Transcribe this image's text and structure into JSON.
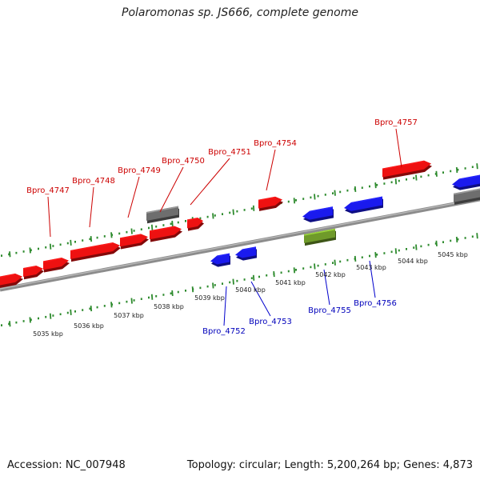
{
  "title": "Polaromonas sp. JS666, complete genome",
  "footer": {
    "accession": "Accession: NC_007948",
    "summary": "Topology: circular; Length: 5,200,264 bp; Genes: 4,873"
  },
  "colors": {
    "forward": "#ee1111",
    "reverse": "#1a1aee",
    "rna": "#6f9a2a",
    "pseudo": "#6e6e6e",
    "backbone": "#8c8c8c",
    "tick": "#2e8b2e"
  },
  "scale_labels": [
    "5035 kbp",
    "5036 kbp",
    "5037 kbp",
    "5038 kbp",
    "5039 kbp",
    "5040 kbp",
    "5041 kbp",
    "5042 kbp",
    "5043 kbp",
    "5044 kbp",
    "5045 kbp"
  ],
  "forward_labels": [
    "Bpro_4747",
    "Bpro_4748",
    "Bpro_4749",
    "Bpro_4750",
    "Bpro_4751",
    "Bpro_4754",
    "Bpro_4757"
  ],
  "reverse_labels": [
    "Bpro_4752",
    "Bpro_4753",
    "Bpro_4755",
    "Bpro_4756"
  ]
}
